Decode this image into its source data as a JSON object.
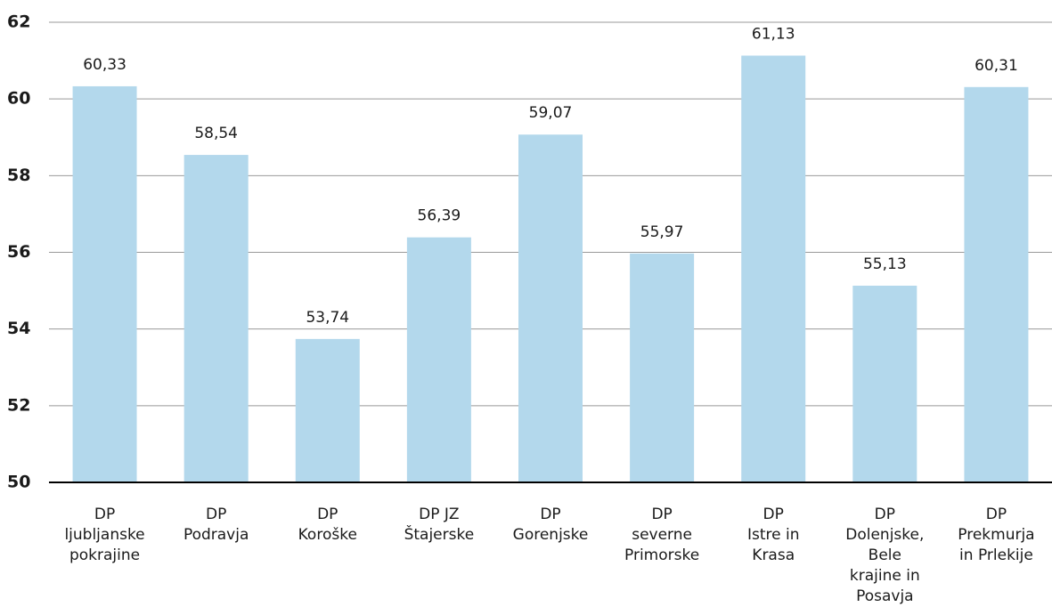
{
  "chart_data": {
    "type": "bar",
    "categories": [
      [
        "DP",
        "ljubljanske",
        "pokrajine"
      ],
      [
        "DP",
        "Podravja"
      ],
      [
        "DP",
        "Koroške"
      ],
      [
        "DP JZ",
        "Štajerske"
      ],
      [
        "DP",
        "Gorenjske"
      ],
      [
        "DP",
        "severne",
        "Primorske"
      ],
      [
        "DP",
        "Istre in",
        "Krasa"
      ],
      [
        "DP",
        "Dolenjske,",
        "Bele",
        "krajine in",
        "Posavja"
      ],
      [
        "DP",
        "Prekmurja",
        "in Prlekije"
      ]
    ],
    "values": [
      60.33,
      58.54,
      53.74,
      56.39,
      59.07,
      55.97,
      61.13,
      55.13,
      60.31
    ],
    "value_labels": [
      "60,33",
      "58,54",
      "53,74",
      "56,39",
      "59,07",
      "55,97",
      "61,13",
      "55,13",
      "60,31"
    ],
    "color": "#b3d8ec",
    "ylim": [
      50,
      62
    ],
    "yticks": [
      50,
      52,
      54,
      56,
      58,
      60,
      62
    ],
    "grid": true
  }
}
